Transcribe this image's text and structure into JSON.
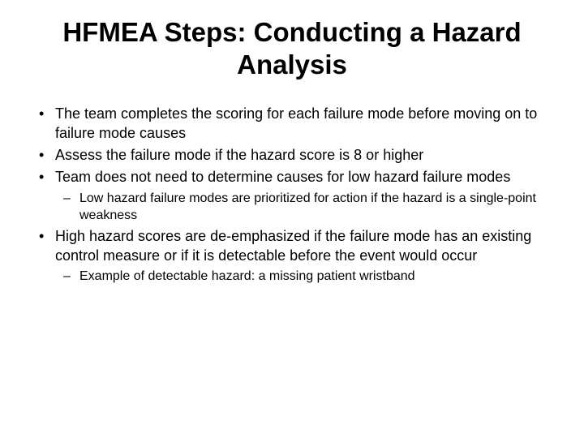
{
  "title": "HFMEA Steps: Conducting a Hazard Analysis",
  "bullets": [
    {
      "text": "The team completes the scoring for each failure mode before moving on to failure mode causes"
    },
    {
      "text": "Assess the failure mode if the hazard score is 8 or higher"
    },
    {
      "text": "Team does not need to determine causes for low hazard failure modes",
      "sub": [
        "Low hazard failure modes are prioritized for action if the hazard is a single-point weakness"
      ]
    },
    {
      "text": "High hazard scores are de-emphasized if the failure mode has an existing control measure or if it is detectable before the event would occur",
      "sub": [
        "Example of detectable hazard: a missing patient wristband"
      ]
    }
  ]
}
